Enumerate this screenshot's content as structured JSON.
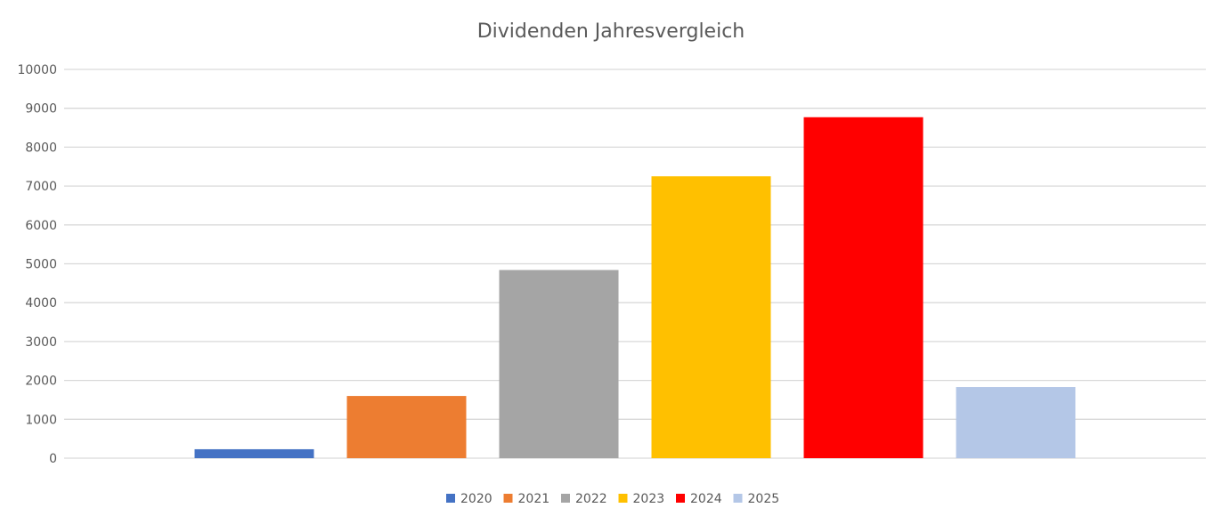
{
  "chart_data": {
    "type": "bar",
    "title": "Dividenden Jahresvergleich",
    "xlabel": "",
    "ylabel": "",
    "categories": [
      ""
    ],
    "series": [
      {
        "name": "2020",
        "values": [
          230
        ],
        "color": "#4472C4"
      },
      {
        "name": "2021",
        "values": [
          1600
        ],
        "color": "#ED7D31"
      },
      {
        "name": "2022",
        "values": [
          4840
        ],
        "color": "#A5A5A5"
      },
      {
        "name": "2023",
        "values": [
          7250
        ],
        "color": "#FFC000"
      },
      {
        "name": "2024",
        "values": [
          8770
        ],
        "color": "#FF0000"
      },
      {
        "name": "2025",
        "values": [
          1830
        ],
        "color": "#B4C7E7"
      }
    ],
    "ylim": [
      0,
      10000
    ],
    "yticks": [
      "0",
      "1000",
      "2000",
      "3000",
      "4000",
      "5000",
      "6000",
      "7000",
      "8000",
      "9000",
      "10000"
    ],
    "grid": true,
    "legend": "bottom"
  }
}
